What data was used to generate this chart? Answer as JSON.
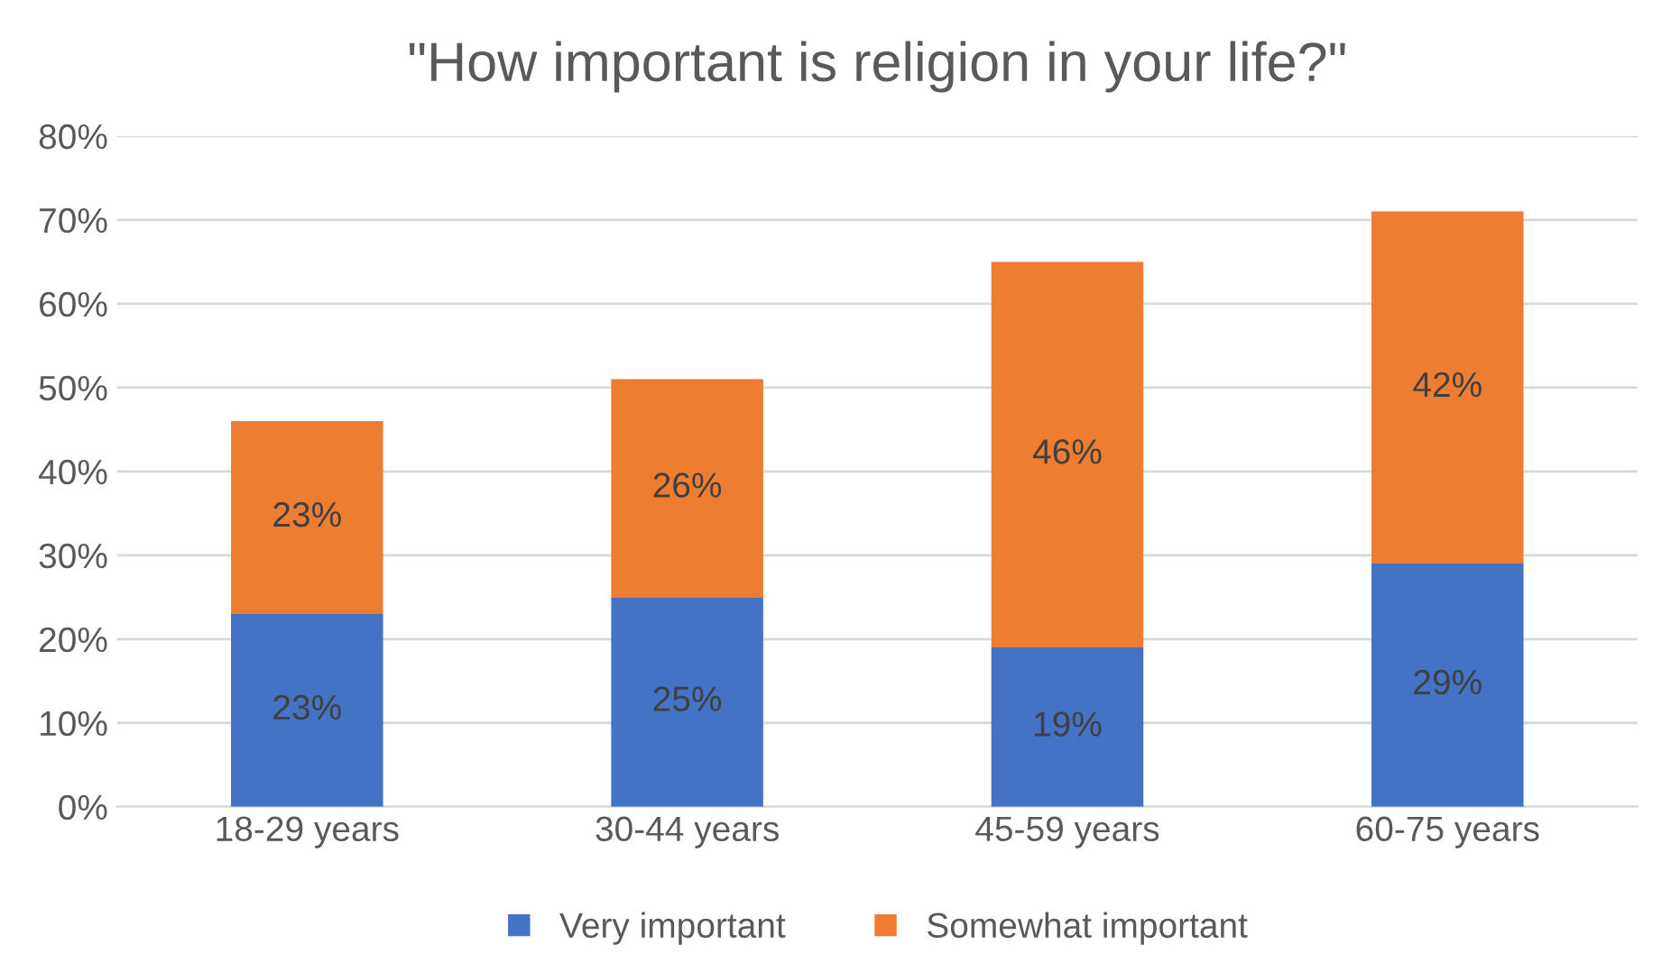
{
  "chart_data": {
    "type": "bar",
    "title": "\"How important is religion in your life?\"",
    "categories": [
      "18-29 years",
      "30-44 years",
      "45-59 years",
      "60-75 years"
    ],
    "stacked": true,
    "series": [
      {
        "name": "Very important",
        "color": "#4472c4",
        "values": [
          23,
          25,
          19,
          29
        ],
        "value_labels": [
          "23%",
          "25%",
          "19%",
          "29%"
        ]
      },
      {
        "name": "Somewhat important",
        "color": "#ed7d31",
        "values": [
          23,
          26,
          46,
          42
        ],
        "value_labels": [
          "23%",
          "26%",
          "46%",
          "42%"
        ]
      }
    ],
    "ylim": [
      0,
      80
    ],
    "yticks": [
      {
        "value": 0,
        "label": "0%"
      },
      {
        "value": 10,
        "label": "10%"
      },
      {
        "value": 20,
        "label": "20%"
      },
      {
        "value": 30,
        "label": "30%"
      },
      {
        "value": 40,
        "label": "40%"
      },
      {
        "value": 50,
        "label": "50%"
      },
      {
        "value": 60,
        "label": "60%"
      },
      {
        "value": 70,
        "label": "70%"
      },
      {
        "value": 80,
        "label": "80%"
      }
    ],
    "grid": "y",
    "legend": "bottom"
  }
}
